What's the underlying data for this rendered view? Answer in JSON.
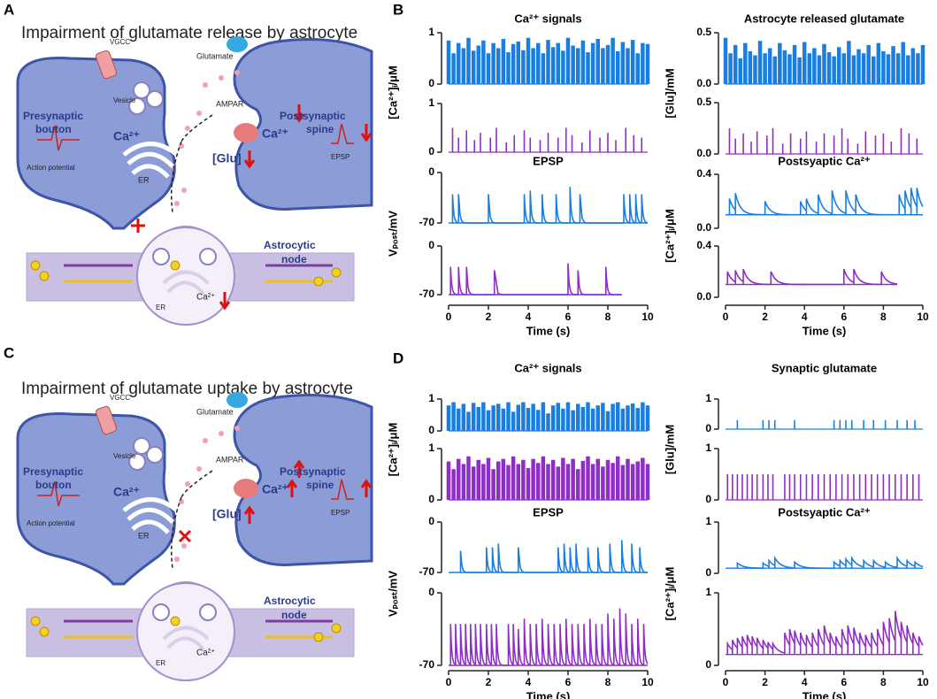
{
  "panels": [
    "A",
    "B",
    "C",
    "D"
  ],
  "diagrams": [
    {
      "title": "Impairment of glutamate release by astrocyte",
      "presynaptic": "Presynaptic",
      "bouton": "bouton",
      "vgcc": "VGCC",
      "glutamate": "Glutamate",
      "vesicle": "Vesicle",
      "postsynaptic": "Postsynaptic",
      "spine": "spine",
      "ampar": "AMPAR",
      "action_potential": "Action potential",
      "ca_pre": "Ca²⁺",
      "er_pre": "ER",
      "glu": "[Glu]",
      "ca_post": "Ca²⁺",
      "epsp": "EPSP",
      "astrocytic": "Astrocytic",
      "node": "node",
      "er_astro": "ER",
      "ca_astro": "Ca²⁺"
    },
    {
      "title": "Impairment of glutamate uptake by astrocyte",
      "presynaptic": "Presynaptic",
      "bouton": "bouton",
      "vgcc": "VGCC",
      "glutamate": "Glutamate",
      "vesicle": "Vesicle",
      "postsynaptic": "Postsynaptic",
      "spine": "spine",
      "ampar": "AMPAR",
      "action_potential": "Action potential",
      "ca_pre": "Ca²⁺",
      "er_pre": "ER",
      "glu": "[Glu]",
      "ca_post": "Ca²⁺",
      "epsp": "EPSP",
      "astrocytic": "Astrocytic",
      "node": "node",
      "er_astro": "ER",
      "ca_astro": "Ca²⁺"
    }
  ],
  "chart_data": [
    {
      "type": "spikes",
      "title": "Ca²⁺ signals",
      "ylabel": "[Ca²⁺]ᵢ/μM",
      "xlim": [
        0,
        10
      ],
      "ylim": [
        0,
        1
      ],
      "yticks": [
        0,
        1
      ],
      "series": [
        {
          "color": "#1a7ee0",
          "x": [
            0,
            0.25,
            0.5,
            0.75,
            1,
            1.25,
            1.5,
            1.75,
            2,
            2.25,
            2.5,
            2.75,
            3,
            3.25,
            3.5,
            3.75,
            4,
            4.25,
            4.5,
            4.75,
            5,
            5.25,
            5.5,
            5.75,
            6,
            6.25,
            6.5,
            6.75,
            7,
            7.25,
            7.5,
            7.75,
            8,
            8.25,
            8.5,
            8.75,
            9,
            9.25,
            9.5,
            9.75,
            10
          ],
          "values": [
            0.85,
            0.6,
            0.8,
            0.7,
            0.9,
            0.65,
            0.75,
            0.85,
            0.6,
            0.8,
            0.7,
            0.88,
            0.62,
            0.78,
            0.83,
            0.66,
            0.9,
            0.7,
            0.8,
            0.6,
            0.86,
            0.72,
            0.8,
            0.65,
            0.9,
            0.75,
            0.7,
            0.85,
            0.62,
            0.8,
            0.88,
            0.7,
            0.76,
            0.9,
            0.64,
            0.82,
            0.7,
            0.86,
            0.6,
            0.8,
            0.78
          ]
        },
        {
          "color": "#8e2ec7",
          "x": [
            0.2,
            0.5,
            0.9,
            1.3,
            1.6,
            2.1,
            2.4,
            2.9,
            3.3,
            3.8,
            4.1,
            4.6,
            5.0,
            5.5,
            5.9,
            6.2,
            6.7,
            7.1,
            7.6,
            8.0,
            8.4,
            8.9,
            9.3,
            9.7
          ],
          "values": [
            0.5,
            0.3,
            0.45,
            0.25,
            0.4,
            0.3,
            0.5,
            0.2,
            0.35,
            0.45,
            0.3,
            0.25,
            0.4,
            0.3,
            0.5,
            0.35,
            0.2,
            0.45,
            0.3,
            0.4,
            0.25,
            0.5,
            0.35,
            0.3
          ]
        }
      ]
    },
    {
      "type": "pulses",
      "title": "EPSP",
      "ylabel": "Vₚₒₛₜ/mV",
      "xlabel": "Time (s)",
      "xlim": [
        0,
        10
      ],
      "xticks": [
        0,
        2,
        4,
        6,
        8,
        10
      ],
      "ylim": [
        -70,
        0
      ],
      "yticks": [
        -70,
        0
      ],
      "series": [
        {
          "color": "#1a7ee0",
          "baseline": -70,
          "x": [
            0.2,
            0.5,
            2.0,
            3.8,
            4.1,
            4.7,
            5.4,
            6.1,
            6.6,
            8.8,
            9.1,
            9.4,
            9.7
          ],
          "values": [
            -30,
            -30,
            -30,
            -30,
            -25,
            -30,
            -30,
            -20,
            -30,
            -30,
            -30,
            -30,
            -30
          ]
        },
        {
          "color": "#8e2ec7",
          "baseline": -70,
          "x": [
            0.1,
            0.5,
            0.9,
            2.3,
            6.0,
            6.5,
            7.9
          ],
          "values": [
            -30,
            -30,
            -30,
            -35,
            -25,
            -35,
            -30
          ]
        }
      ]
    },
    {
      "type": "spikes",
      "title": "Astrocyte released glutamate",
      "ylabel": "[Glu]/mM",
      "xlim": [
        0,
        10
      ],
      "ylim": [
        0,
        0.5
      ],
      "yticks": [
        {
          "value": 0,
          "label": "0.0"
        },
        {
          "value": 0.5,
          "label": "0.5"
        }
      ],
      "series": [
        {
          "color": "#1a7ee0",
          "x": [
            0,
            0.25,
            0.5,
            0.75,
            1,
            1.25,
            1.5,
            1.75,
            2,
            2.25,
            2.5,
            2.75,
            3,
            3.25,
            3.5,
            3.75,
            4,
            4.25,
            4.5,
            4.75,
            5,
            5.25,
            5.5,
            5.75,
            6,
            6.25,
            6.5,
            6.75,
            7,
            7.25,
            7.5,
            7.75,
            8,
            8.25,
            8.5,
            8.75,
            9,
            9.25,
            9.5,
            9.75,
            10
          ],
          "values": [
            0.45,
            0.3,
            0.38,
            0.25,
            0.4,
            0.32,
            0.28,
            0.42,
            0.3,
            0.35,
            0.27,
            0.4,
            0.33,
            0.29,
            0.38,
            0.26,
            0.41,
            0.3,
            0.35,
            0.28,
            0.39,
            0.31,
            0.27,
            0.36,
            0.3,
            0.42,
            0.28,
            0.34,
            0.3,
            0.38,
            0.27,
            0.4,
            0.32,
            0.29,
            0.37,
            0.3,
            0.41,
            0.28,
            0.35,
            0.3,
            0.38
          ]
        },
        {
          "color": "#8e2ec7",
          "x": [
            0.2,
            0.5,
            0.9,
            1.3,
            1.6,
            2.1,
            2.4,
            2.9,
            3.3,
            3.8,
            4.1,
            4.6,
            5.0,
            5.5,
            5.9,
            6.2,
            6.7,
            7.1,
            7.6,
            8.0,
            8.4,
            8.9,
            9.3,
            9.7
          ],
          "values": [
            0.25,
            0.15,
            0.2,
            0.12,
            0.22,
            0.18,
            0.25,
            0.1,
            0.2,
            0.15,
            0.22,
            0.12,
            0.2,
            0.18,
            0.25,
            0.15,
            0.1,
            0.22,
            0.18,
            0.2,
            0.12,
            0.25,
            0.2,
            0.15
          ]
        }
      ]
    },
    {
      "type": "pulses",
      "title": "Postsyaptic Ca²⁺",
      "ylabel": "[Ca²⁺]ᵢ/μM",
      "xlabel": "Time (s)",
      "xlim": [
        0,
        10
      ],
      "xticks": [
        0,
        2,
        4,
        6,
        8,
        10
      ],
      "ylim": [
        0,
        0.4
      ],
      "yticks": [
        {
          "value": 0,
          "label": "0.0"
        },
        {
          "value": 0.4,
          "label": "0.4"
        }
      ],
      "series": [
        {
          "color": "#1a7ee0",
          "baseline": 0.1,
          "x": [
            0.2,
            0.5,
            2.0,
            3.8,
            4.1,
            4.7,
            5.4,
            6.1,
            6.6,
            8.8,
            9.1,
            9.4,
            9.7
          ],
          "values": [
            0.22,
            0.26,
            0.2,
            0.2,
            0.22,
            0.25,
            0.28,
            0.28,
            0.25,
            0.25,
            0.28,
            0.3,
            0.3
          ]
        },
        {
          "color": "#8e2ec7",
          "baseline": 0.1,
          "x": [
            0.1,
            0.5,
            0.9,
            2.3,
            6.0,
            6.5,
            7.9
          ],
          "values": [
            0.2,
            0.21,
            0.22,
            0.2,
            0.22,
            0.22,
            0.2
          ]
        }
      ]
    },
    {
      "type": "spikes",
      "title": "Ca²⁺ signals",
      "ylabel": "[Ca²⁺]ᵢ/μM",
      "xlim": [
        0,
        10
      ],
      "ylim": [
        0,
        1
      ],
      "yticks": [
        0,
        1
      ],
      "series": [
        {
          "color": "#1a7ee0",
          "x": [
            0,
            0.25,
            0.5,
            0.75,
            1,
            1.25,
            1.5,
            1.75,
            2,
            2.25,
            2.5,
            2.75,
            3,
            3.25,
            3.5,
            3.75,
            4,
            4.25,
            4.5,
            4.75,
            5,
            5.25,
            5.5,
            5.75,
            6,
            6.25,
            6.5,
            6.75,
            7,
            7.25,
            7.5,
            7.75,
            8,
            8.25,
            8.5,
            8.75,
            9,
            9.25,
            9.5,
            9.75,
            10
          ],
          "values": [
            0.8,
            0.9,
            0.7,
            0.85,
            0.6,
            0.88,
            0.75,
            0.9,
            0.65,
            0.8,
            0.85,
            0.7,
            0.9,
            0.6,
            0.82,
            0.9,
            0.72,
            0.85,
            0.66,
            0.9,
            0.55,
            0.8,
            0.88,
            0.7,
            0.9,
            0.65,
            0.85,
            0.75,
            0.9,
            0.7,
            0.8,
            0.88,
            0.62,
            0.85,
            0.9,
            0.7,
            0.8,
            0.86,
            0.72,
            0.9,
            0.8
          ]
        },
        {
          "color": "#8e2ec7",
          "x": [
            0,
            0.25,
            0.5,
            0.75,
            1,
            1.25,
            1.5,
            1.75,
            2,
            2.25,
            2.5,
            2.75,
            3,
            3.25,
            3.5,
            3.75,
            4,
            4.25,
            4.5,
            4.75,
            5,
            5.25,
            5.5,
            5.75,
            6,
            6.25,
            6.5,
            6.75,
            7,
            7.25,
            7.5,
            7.75,
            8,
            8.25,
            8.5,
            8.75,
            9,
            9.25,
            9.5,
            9.75,
            10
          ],
          "values": [
            0.75,
            0.6,
            0.8,
            0.7,
            0.85,
            0.65,
            0.78,
            0.7,
            0.82,
            0.6,
            0.75,
            0.8,
            0.68,
            0.85,
            0.7,
            0.78,
            0.62,
            0.8,
            0.72,
            0.85,
            0.7,
            0.78,
            0.65,
            0.82,
            0.7,
            0.8,
            0.6,
            0.76,
            0.85,
            0.7,
            0.8,
            0.65,
            0.78,
            0.72,
            0.85,
            0.68,
            0.8,
            0.7,
            0.75,
            0.82,
            0.7
          ]
        }
      ]
    },
    {
      "type": "pulses",
      "title": "EPSP",
      "ylabel": "Vₚₒₛₜ/mV",
      "xlabel": "Time (s)",
      "xlim": [
        0,
        10
      ],
      "xticks": [
        0,
        2,
        4,
        6,
        8,
        10
      ],
      "ylim": [
        -70,
        0
      ],
      "yticks": [
        -70,
        0
      ],
      "series": [
        {
          "color": "#1a7ee0",
          "baseline": -70,
          "x": [
            0.6,
            1.9,
            2.2,
            2.5,
            3.5,
            5.5,
            5.8,
            6.1,
            6.4,
            7.0,
            7.5,
            8.1,
            8.7,
            9.2,
            9.6
          ],
          "values": [
            -40,
            -35,
            -35,
            -30,
            -35,
            -35,
            -30,
            -35,
            -30,
            -35,
            -35,
            -30,
            -25,
            -30,
            -35
          ]
        },
        {
          "color": "#8e2ec7",
          "baseline": -70,
          "x": [
            0.1,
            0.35,
            0.6,
            0.85,
            1.1,
            1.35,
            1.6,
            1.9,
            2.15,
            2.4,
            3.0,
            3.25,
            3.5,
            3.8,
            4.1,
            4.4,
            4.7,
            5.0,
            5.3,
            5.6,
            5.9,
            6.2,
            6.5,
            6.8,
            7.1,
            7.4,
            7.7,
            8.0,
            8.3,
            8.6,
            8.9,
            9.2,
            9.5,
            9.8
          ],
          "values": [
            -30,
            -30,
            -30,
            -30,
            -30,
            -30,
            -30,
            -30,
            -30,
            -30,
            -30,
            -30,
            -35,
            -25,
            -30,
            -30,
            -25,
            -30,
            -30,
            -30,
            -25,
            -30,
            -30,
            -30,
            -25,
            -30,
            -30,
            -20,
            -25,
            -15,
            -20,
            -30,
            -25,
            -30
          ]
        }
      ]
    },
    {
      "type": "spikes",
      "title": "Synaptic glutamate",
      "ylabel": "[Glu]/mM",
      "xlim": [
        0,
        10
      ],
      "ylim": [
        0,
        1
      ],
      "yticks": [
        0,
        1
      ],
      "series": [
        {
          "color": "#1a7ee0",
          "x": [
            0.6,
            1.9,
            2.2,
            2.5,
            3.5,
            5.5,
            5.8,
            6.1,
            6.4,
            7.0,
            7.5,
            8.1,
            8.7,
            9.2,
            9.6
          ],
          "values": [
            0.3,
            0.3,
            0.3,
            0.3,
            0.3,
            0.3,
            0.3,
            0.3,
            0.3,
            0.3,
            0.3,
            0.3,
            0.3,
            0.3,
            0.3
          ]
        },
        {
          "color": "#8e2ec7",
          "x": [
            0.1,
            0.35,
            0.6,
            0.85,
            1.1,
            1.35,
            1.6,
            1.9,
            2.15,
            2.4,
            3.0,
            3.25,
            3.5,
            3.8,
            4.1,
            4.4,
            4.7,
            5.0,
            5.3,
            5.6,
            5.9,
            6.2,
            6.5,
            6.8,
            7.1,
            7.4,
            7.7,
            8.0,
            8.3,
            8.6,
            8.9,
            9.2,
            9.5,
            9.8
          ],
          "values": [
            0.5,
            0.5,
            0.5,
            0.5,
            0.5,
            0.5,
            0.5,
            0.5,
            0.5,
            0.5,
            0.5,
            0.5,
            0.5,
            0.5,
            0.5,
            0.5,
            0.5,
            0.5,
            0.5,
            0.5,
            0.5,
            0.5,
            0.5,
            0.5,
            0.5,
            0.5,
            0.5,
            0.5,
            0.5,
            0.5,
            0.5,
            0.5,
            0.5,
            0.5
          ]
        }
      ]
    },
    {
      "type": "pulses",
      "title": "Postsyaptic Ca²⁺",
      "ylabel": "[Ca²⁺]ᵢ/μM",
      "xlabel": "Time (s)",
      "xlim": [
        0,
        10
      ],
      "xticks": [
        0,
        2,
        4,
        6,
        8,
        10
      ],
      "ylim": [
        0,
        1
      ],
      "yticks": [
        0,
        1
      ],
      "series": [
        {
          "color": "#1a7ee0",
          "baseline": 0.1,
          "x": [
            0.6,
            1.9,
            2.2,
            2.5,
            3.5,
            5.5,
            5.8,
            6.1,
            6.4,
            7.0,
            7.5,
            8.1,
            8.7,
            9.2,
            9.6
          ],
          "values": [
            0.2,
            0.2,
            0.25,
            0.3,
            0.22,
            0.22,
            0.25,
            0.28,
            0.3,
            0.25,
            0.25,
            0.22,
            0.3,
            0.25,
            0.22
          ]
        },
        {
          "color": "#8e2ec7",
          "baseline": 0.15,
          "x": [
            0.1,
            0.35,
            0.6,
            0.85,
            1.1,
            1.35,
            1.6,
            1.9,
            2.15,
            2.4,
            3.0,
            3.25,
            3.5,
            3.8,
            4.1,
            4.4,
            4.7,
            5.0,
            5.3,
            5.6,
            5.9,
            6.2,
            6.5,
            6.8,
            7.1,
            7.4,
            7.7,
            8.0,
            8.3,
            8.6,
            8.9,
            9.2,
            9.5,
            9.8
          ],
          "values": [
            0.3,
            0.35,
            0.38,
            0.4,
            0.42,
            0.4,
            0.38,
            0.35,
            0.32,
            0.3,
            0.45,
            0.5,
            0.48,
            0.45,
            0.42,
            0.45,
            0.5,
            0.55,
            0.45,
            0.4,
            0.5,
            0.55,
            0.52,
            0.45,
            0.42,
            0.45,
            0.5,
            0.6,
            0.65,
            0.75,
            0.6,
            0.55,
            0.45,
            0.4
          ]
        }
      ]
    }
  ]
}
